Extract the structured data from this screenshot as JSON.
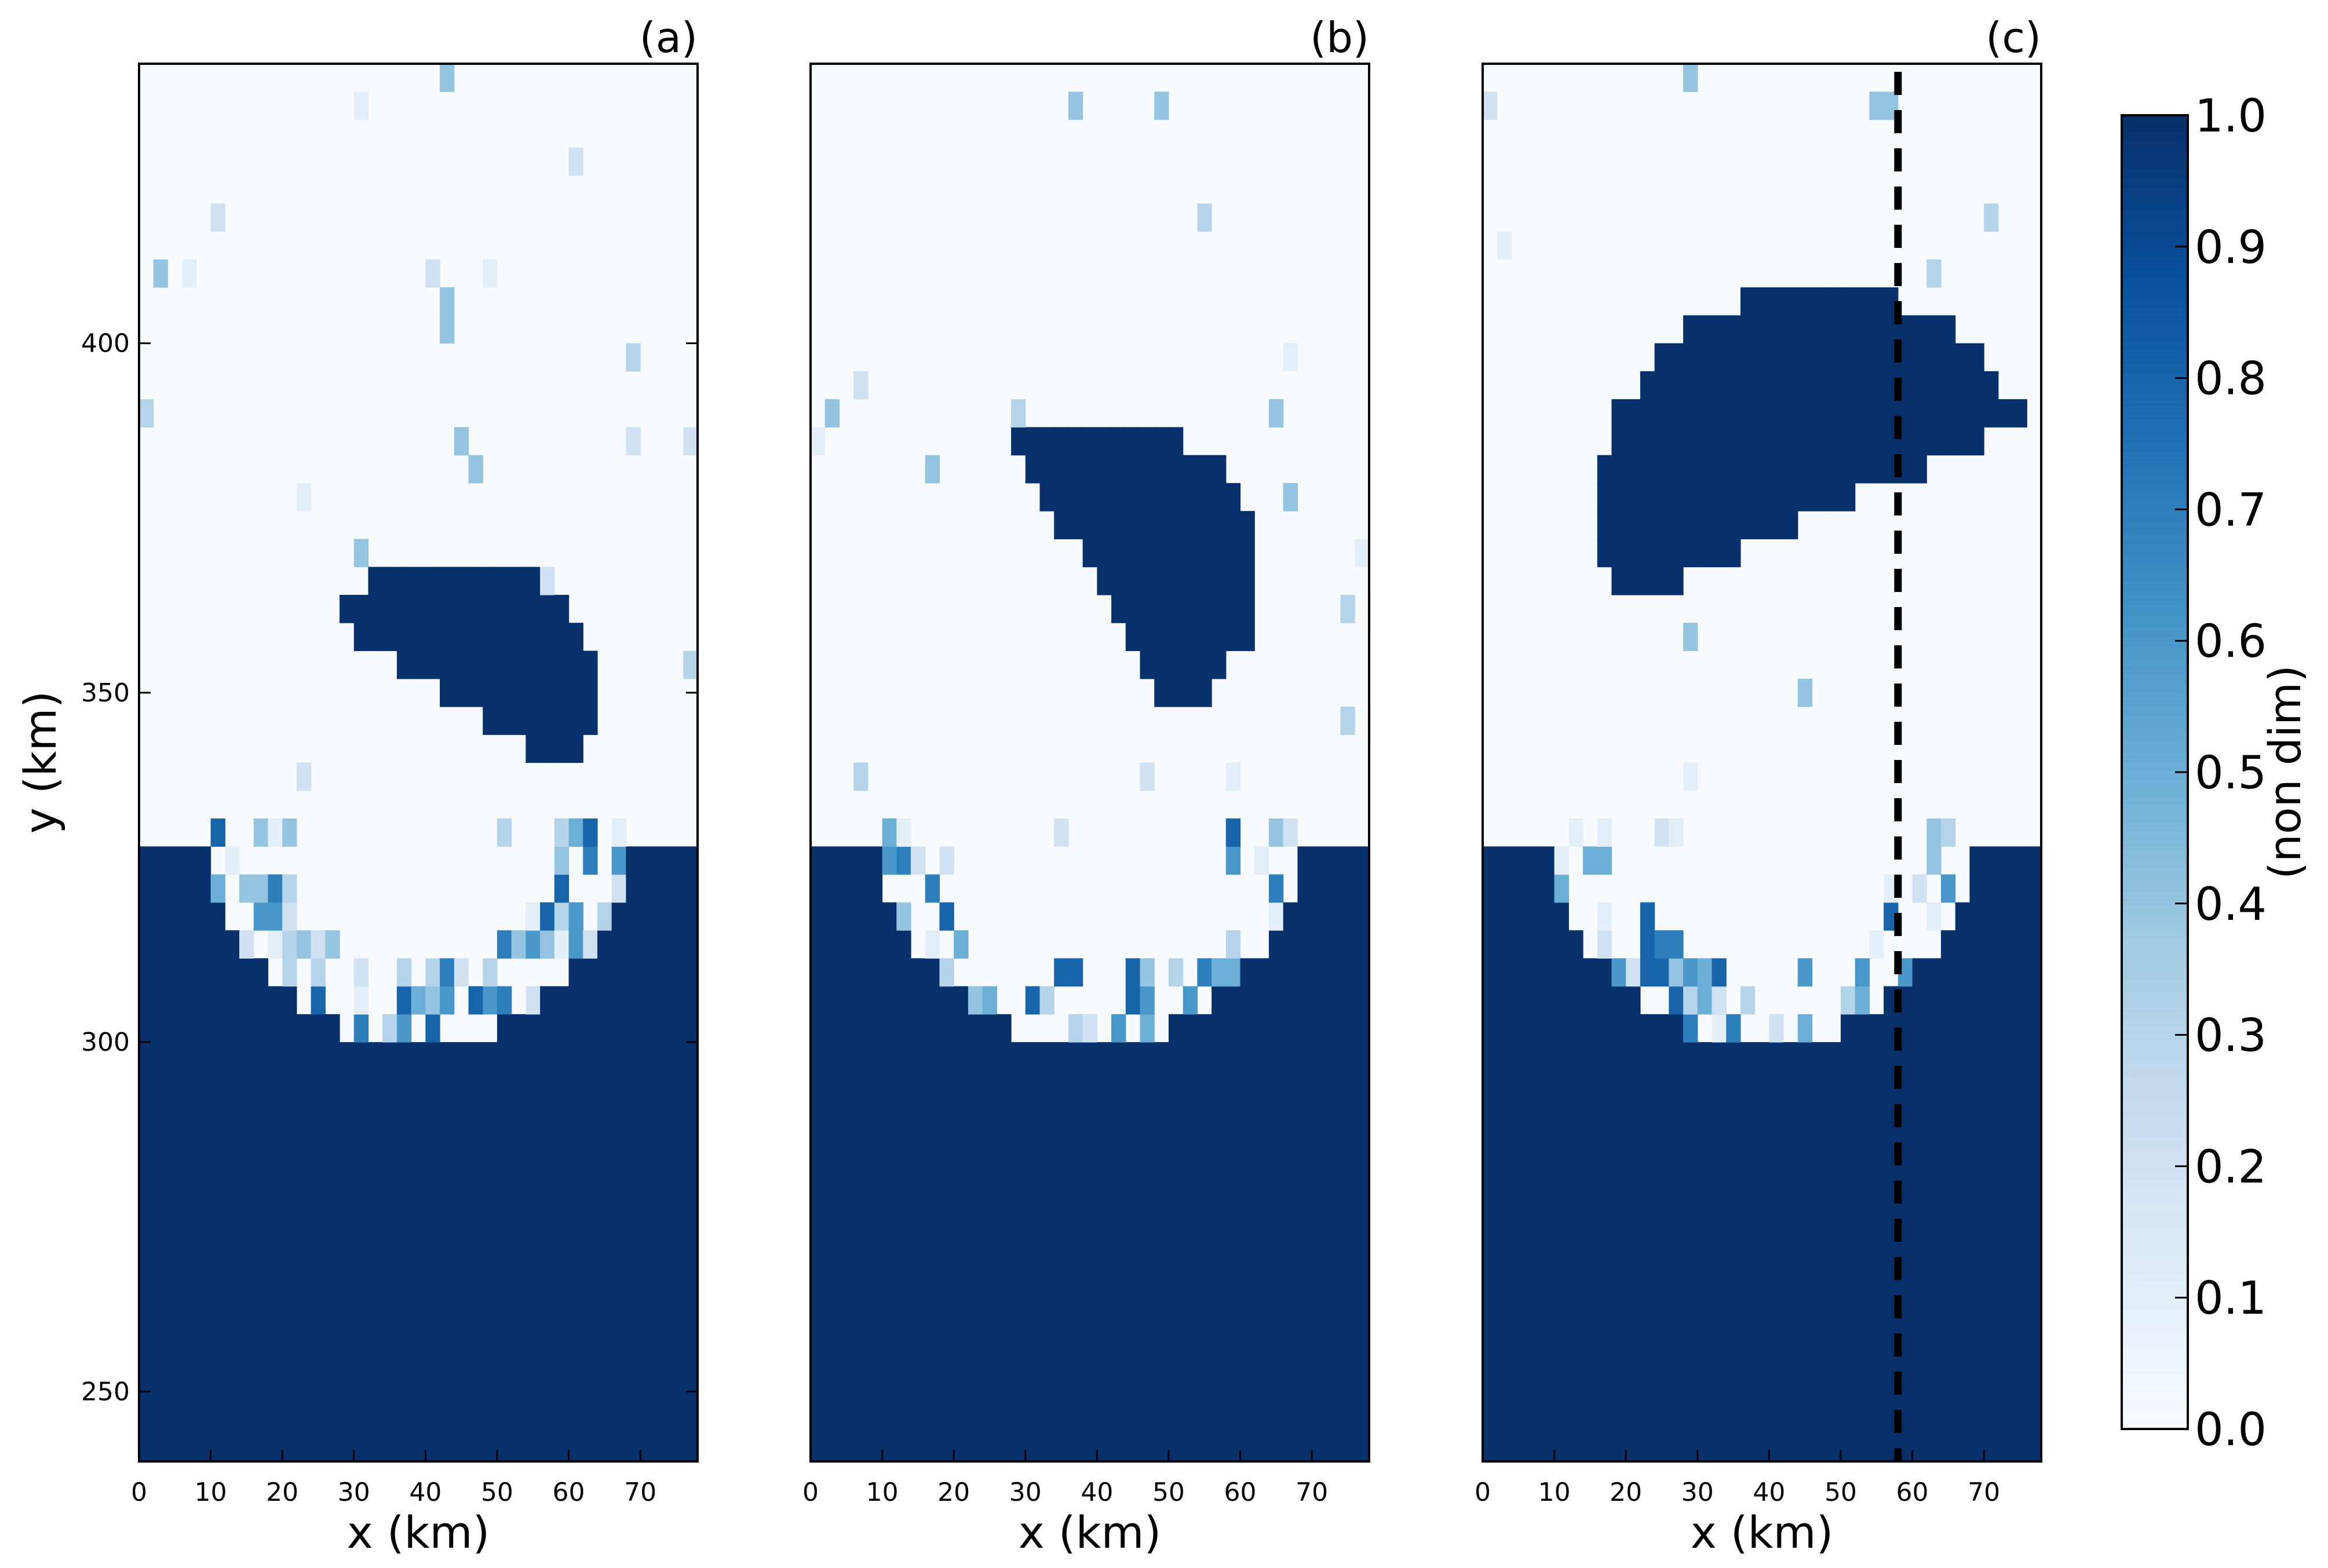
{
  "chart_data": {
    "type": "heatmap",
    "colormap": "Blues",
    "panels": [
      {
        "label": "(a)",
        "xlabel": "x (km)",
        "ylabel": "y (km)",
        "xlim": [
          0,
          78
        ],
        "ylim": [
          240,
          440
        ],
        "xticks": [
          0,
          10,
          20,
          30,
          40,
          50,
          60,
          70
        ],
        "yticks": [
          250,
          300,
          350,
          400
        ],
        "shelf_value": 1.0,
        "bay_center_x": 39,
        "bay_radius_km": 29,
        "coast_y": 329,
        "floe": {
          "cx": 44,
          "cy": 350,
          "r": 20,
          "angle_deg": -35,
          "value": 1.0
        },
        "debris_density": 0.55,
        "sample_values": [
          0.1,
          0.2,
          0.3,
          0.4,
          0.5,
          0.6,
          0.7,
          0.8
        ]
      },
      {
        "label": "(b)",
        "xlabel": "x (km)",
        "ylabel": "",
        "xlim": [
          0,
          78
        ],
        "ylim": [
          240,
          440
        ],
        "xticks": [
          0,
          10,
          20,
          30,
          40,
          50,
          60,
          70
        ],
        "yticks": [],
        "shelf_value": 1.0,
        "bay_center_x": 39,
        "bay_radius_km": 29,
        "coast_y": 329,
        "floe": {
          "cx": 40,
          "cy": 367,
          "r": 23,
          "angle_deg": -62,
          "value": 1.0
        },
        "debris_density": 0.35,
        "sample_values": [
          0.1,
          0.2,
          0.3,
          0.4,
          0.5,
          0.6,
          0.7,
          0.8
        ]
      },
      {
        "label": "(c)",
        "xlabel": "x (km)",
        "ylabel": "",
        "xlim": [
          0,
          78
        ],
        "ylim": [
          240,
          440
        ],
        "xticks": [
          0,
          10,
          20,
          30,
          40,
          50,
          60,
          70
        ],
        "yticks": [],
        "shelf_value": 1.0,
        "bay_center_x": 39,
        "bay_radius_km": 29,
        "coast_y": 329,
        "floe": {
          "cx": 47,
          "cy": 377,
          "r": 31,
          "angle_deg": 25,
          "value": 1.0
        },
        "debris_density": 0.3,
        "dashed_line_x": 58,
        "sample_values": [
          0.1,
          0.2,
          0.3,
          0.4,
          0.5,
          0.6,
          0.7,
          0.8
        ]
      }
    ],
    "colorbar": {
      "label": "(non dim)",
      "range": [
        0.0,
        1.0
      ],
      "ticks": [
        "0.0",
        "0.1",
        "0.2",
        "0.3",
        "0.4",
        "0.5",
        "0.6",
        "0.7",
        "0.8",
        "0.9",
        "1.0"
      ]
    }
  }
}
